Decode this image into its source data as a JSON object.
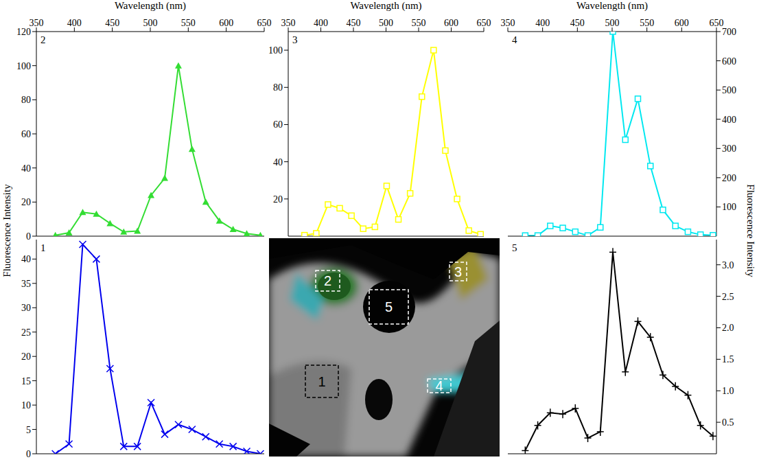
{
  "chart_data": [
    {
      "type": "line",
      "title": "2",
      "x_label": "Wavelength (nm)",
      "x": [
        375,
        393,
        411,
        429,
        447,
        465,
        483,
        501,
        519,
        537,
        555,
        573,
        591,
        609,
        627,
        645
      ],
      "series": [
        {
          "color": "#33dd33",
          "marker": "triangle",
          "values": [
            0.5,
            2,
            14,
            13,
            7.5,
            2.5,
            3,
            24,
            34,
            100,
            51,
            20,
            9,
            4,
            1.5,
            0.5
          ]
        }
      ],
      "xlim": [
        350,
        650
      ],
      "xticks": [
        350,
        400,
        450,
        500,
        550,
        600,
        650
      ],
      "ylim": [
        0,
        120
      ],
      "yticks": [
        0,
        20,
        40,
        60,
        80,
        100,
        120
      ]
    },
    {
      "type": "line",
      "title": "3",
      "x_label": "Wavelength (nm)",
      "x": [
        375,
        393,
        411,
        429,
        447,
        465,
        483,
        501,
        519,
        537,
        555,
        573,
        591,
        609,
        627,
        645
      ],
      "series": [
        {
          "color": "#ffff00",
          "marker": "square",
          "values": [
            0.5,
            1.5,
            17,
            15,
            11,
            4,
            5,
            27,
            9,
            23,
            75,
            100,
            46,
            20,
            3,
            1
          ]
        }
      ],
      "xlim": [
        350,
        650
      ],
      "xticks": [
        350,
        400,
        450,
        500,
        550,
        600,
        650
      ],
      "ylim": [
        0,
        110
      ],
      "yticks": [
        20,
        40,
        60,
        80,
        100
      ]
    },
    {
      "type": "line",
      "title": "4",
      "x_label": "Wavelength (nm)",
      "x": [
        375,
        393,
        411,
        429,
        447,
        465,
        483,
        501,
        519,
        537,
        555,
        573,
        591,
        609,
        627,
        645
      ],
      "series": [
        {
          "color": "#00e8f0",
          "marker": "square",
          "axis": "y2",
          "values": [
            2,
            2,
            35,
            28,
            15,
            2,
            30,
            700,
            330,
            470,
            240,
            90,
            35,
            15,
            5,
            3
          ]
        }
      ],
      "xlim": [
        350,
        650
      ],
      "xticks": [
        350,
        400,
        450,
        500,
        550,
        600,
        650
      ],
      "y2lim": [
        0,
        700
      ],
      "y2ticks": [
        100,
        200,
        300,
        400,
        500,
        600,
        700
      ]
    },
    {
      "type": "line",
      "title": "1",
      "x": [
        375,
        393,
        411,
        429,
        447,
        465,
        483,
        501,
        519,
        537,
        555,
        573,
        591,
        609,
        627,
        645
      ],
      "series": [
        {
          "color": "#0000ee",
          "marker": "x",
          "values": [
            0,
            2,
            43,
            40,
            17.5,
            1.5,
            1.5,
            10.5,
            4,
            6,
            5,
            3.5,
            2,
            1.5,
            0.5,
            0
          ]
        }
      ],
      "xlim": [
        350,
        650
      ],
      "ylim": [
        0,
        44
      ],
      "yticks": [
        0,
        5,
        10,
        15,
        20,
        25,
        30,
        35,
        40
      ],
      "tick_labels": "y"
    },
    {
      "type": "line",
      "title": "5",
      "x": [
        375,
        393,
        411,
        429,
        447,
        465,
        483,
        501,
        519,
        537,
        555,
        573,
        591,
        609,
        627,
        645
      ],
      "series": [
        {
          "color": "#000000",
          "marker": "plus",
          "axis": "y2",
          "values": [
            0.05,
            0.45,
            0.65,
            0.63,
            0.72,
            0.25,
            0.35,
            3.2,
            1.3,
            2.1,
            1.85,
            1.25,
            1.07,
            0.93,
            0.45,
            0.28
          ]
        }
      ],
      "xlim": [
        350,
        650
      ],
      "y2lim": [
        0,
        3.4
      ],
      "y2ticks": [
        0.5,
        {
          "value": 1,
          "label": "1.0"
        },
        1.5,
        {
          "value": 2,
          "label": "2.0"
        },
        2.5,
        {
          "value": 3,
          "label": "3.0"
        }
      ],
      "tick_labels": "y"
    }
  ],
  "figure": {
    "y_label": "Fluorescence Intensity",
    "y2_label": "Fluorescence Intensity"
  },
  "image": {
    "regions": [
      "1",
      "2",
      "3",
      "4",
      "5"
    ]
  }
}
